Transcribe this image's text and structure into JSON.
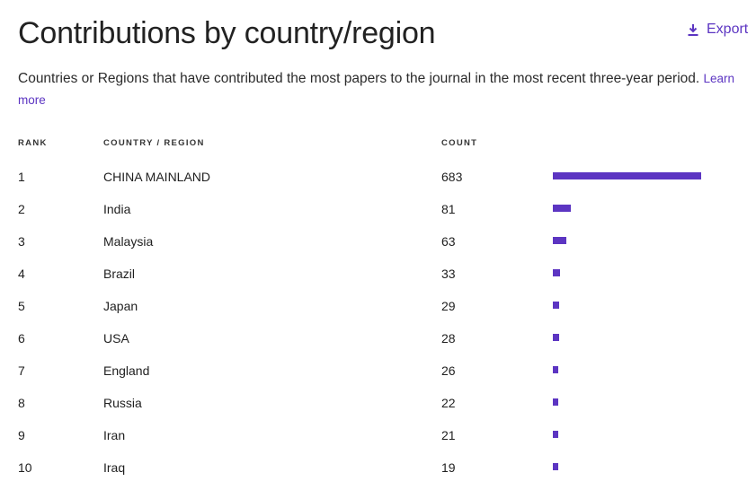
{
  "header": {
    "title": "Contributions by country/region",
    "export_label": "Export"
  },
  "description": {
    "text": "Countries or Regions that have contributed the most papers to the journal in the most recent three-year period.",
    "link": "Learn more"
  },
  "table": {
    "columns": [
      "RANK",
      "COUNTRY / REGION",
      "COUNT"
    ],
    "rows": [
      {
        "rank": "1",
        "country": "CHINA MAINLAND",
        "count": "683"
      },
      {
        "rank": "2",
        "country": "India",
        "count": "81"
      },
      {
        "rank": "3",
        "country": "Malaysia",
        "count": "63"
      },
      {
        "rank": "4",
        "country": "Brazil",
        "count": "33"
      },
      {
        "rank": "5",
        "country": "Japan",
        "count": "29"
      },
      {
        "rank": "6",
        "country": "USA",
        "count": "28"
      },
      {
        "rank": "7",
        "country": "England",
        "count": "26"
      },
      {
        "rank": "8",
        "country": "Russia",
        "count": "22"
      },
      {
        "rank": "9",
        "country": "Iran",
        "count": "21"
      },
      {
        "rank": "10",
        "country": "Iraq",
        "count": "19"
      }
    ]
  },
  "colors": {
    "accent": "#5c35c2"
  }
}
